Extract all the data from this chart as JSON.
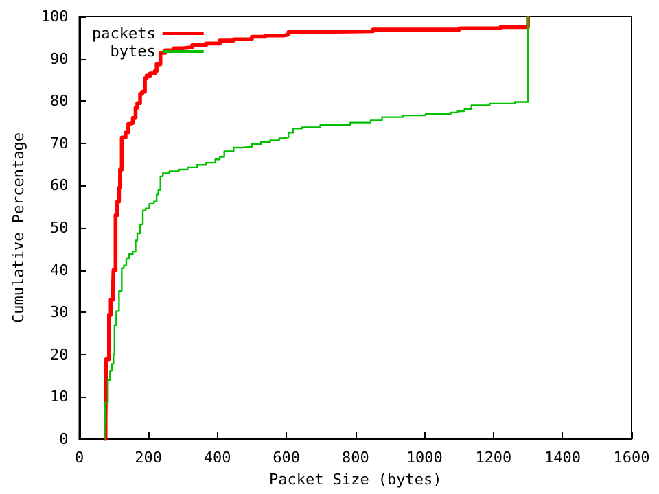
{
  "chart_data": {
    "type": "step",
    "xlabel": "Packet Size (bytes)",
    "ylabel": "Cumulative Percentage",
    "xlim": [
      0,
      1600
    ],
    "xticks": [
      0,
      200,
      400,
      600,
      800,
      1000,
      1200,
      1400,
      1600
    ],
    "ylim": [
      0,
      100
    ],
    "yticks": [
      0,
      10,
      20,
      30,
      40,
      50,
      60,
      70,
      80,
      90,
      100
    ],
    "grid": false,
    "legend": "top left",
    "marker": "none",
    "line_style": "solid",
    "series": [
      {
        "name": "packets",
        "color": "#ff0000",
        "x": [
          73,
          76,
          78,
          86,
          91,
          97,
          99,
          105,
          110,
          115,
          118,
          123,
          134,
          142,
          147,
          155,
          163,
          168,
          176,
          182,
          190,
          195,
          205,
          219,
          224,
          235,
          248,
          274,
          298,
          327,
          367,
          407,
          447,
          500,
          539,
          592,
          606,
          645,
          851,
          1101,
          1221,
          1300
        ],
        "values": [
          0,
          4.8,
          18.9,
          29.4,
          33,
          34,
          40,
          53,
          56.2,
          59.5,
          63.8,
          71.4,
          72.5,
          74.6,
          74.8,
          76,
          78.4,
          79.5,
          81.7,
          82.2,
          85.4,
          86,
          86.5,
          87.1,
          88.7,
          91.4,
          92,
          92.5,
          92.7,
          93.2,
          93.6,
          94.3,
          94.6,
          95.2,
          95.5,
          95.7,
          96.3,
          96.5,
          96.9,
          97.2,
          97.5,
          100
        ]
      },
      {
        "name": "bytes",
        "color": "#00c000",
        "x": [
          73,
          75,
          83,
          89,
          94,
          99,
          102,
          107,
          115,
          123,
          129,
          136,
          144,
          155,
          163,
          168,
          176,
          184,
          192,
          203,
          216,
          224,
          229,
          235,
          242,
          261,
          288,
          314,
          341,
          367,
          394,
          407,
          420,
          447,
          473,
          500,
          526,
          553,
          579,
          592,
          606,
          619,
          645,
          698,
          785,
          844,
          877,
          937,
          1003,
          1076,
          1096,
          1116,
          1136,
          1189,
          1262,
          1300
        ],
        "values": [
          0,
          8.6,
          14,
          16.2,
          17.8,
          20,
          27,
          30.3,
          35.1,
          40.5,
          41.1,
          42.7,
          43.8,
          44.3,
          47,
          48.7,
          50.8,
          54.1,
          54.6,
          55.7,
          56.2,
          57.9,
          58.9,
          62.2,
          62.9,
          63.4,
          63.8,
          64.3,
          64.9,
          65.4,
          66.2,
          66.8,
          68.1,
          69,
          69.2,
          69.8,
          70.3,
          70.7,
          71.2,
          71.4,
          72.5,
          73.5,
          73.8,
          74.3,
          74.9,
          75.4,
          76.2,
          76.6,
          76.9,
          77.3,
          77.6,
          78.1,
          79,
          79.4,
          79.8,
          100
        ]
      }
    ]
  }
}
